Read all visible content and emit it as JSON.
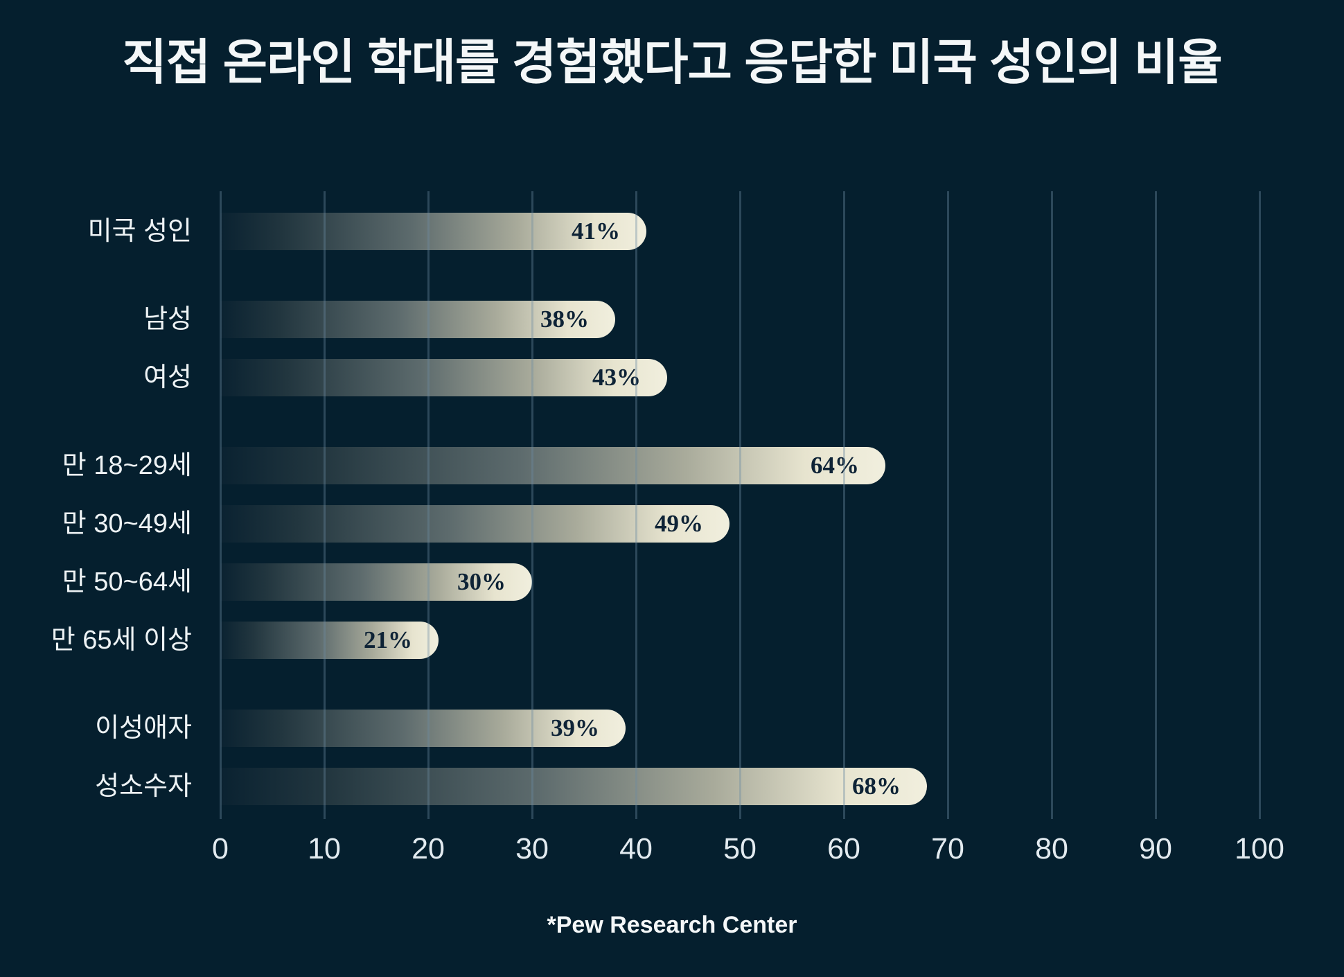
{
  "title": "직접 온라인 학대를 경험했다고 응답한 미국 성인의 비율",
  "source": "*Pew Research Center",
  "chart_data": {
    "type": "bar",
    "orientation": "horizontal",
    "title": "직접 온라인 학대를 경험했다고 응답한 미국 성인의 비율",
    "categories": [
      "미국 성인",
      "남성",
      "여성",
      "만 18~29세",
      "만 30~49세",
      "만 50~64세",
      "만 65세 이상",
      "이성애자",
      "성소수자"
    ],
    "values": [
      41,
      38,
      43,
      64,
      49,
      30,
      21,
      39,
      68
    ],
    "value_labels": [
      "41%",
      "38%",
      "43%",
      "64%",
      "49%",
      "30%",
      "21%",
      "39%",
      "68%"
    ],
    "groups": [
      0,
      1,
      1,
      2,
      2,
      2,
      2,
      3,
      3
    ],
    "value_suffix": "%",
    "xlim": [
      0,
      100
    ],
    "xticks": [
      0,
      10,
      20,
      30,
      40,
      50,
      60,
      70,
      80,
      90,
      100
    ],
    "grid": "vertical",
    "legend": "none",
    "source": "*Pew Research Center",
    "colors": {
      "background": "#051f2e",
      "bar_gradient_start": "#0a2231",
      "bar_gradient_end": "#f1efde",
      "bar_value_text": "#0e2336",
      "gridline": "#6c8ca4",
      "text": "#f4f7f8"
    }
  }
}
